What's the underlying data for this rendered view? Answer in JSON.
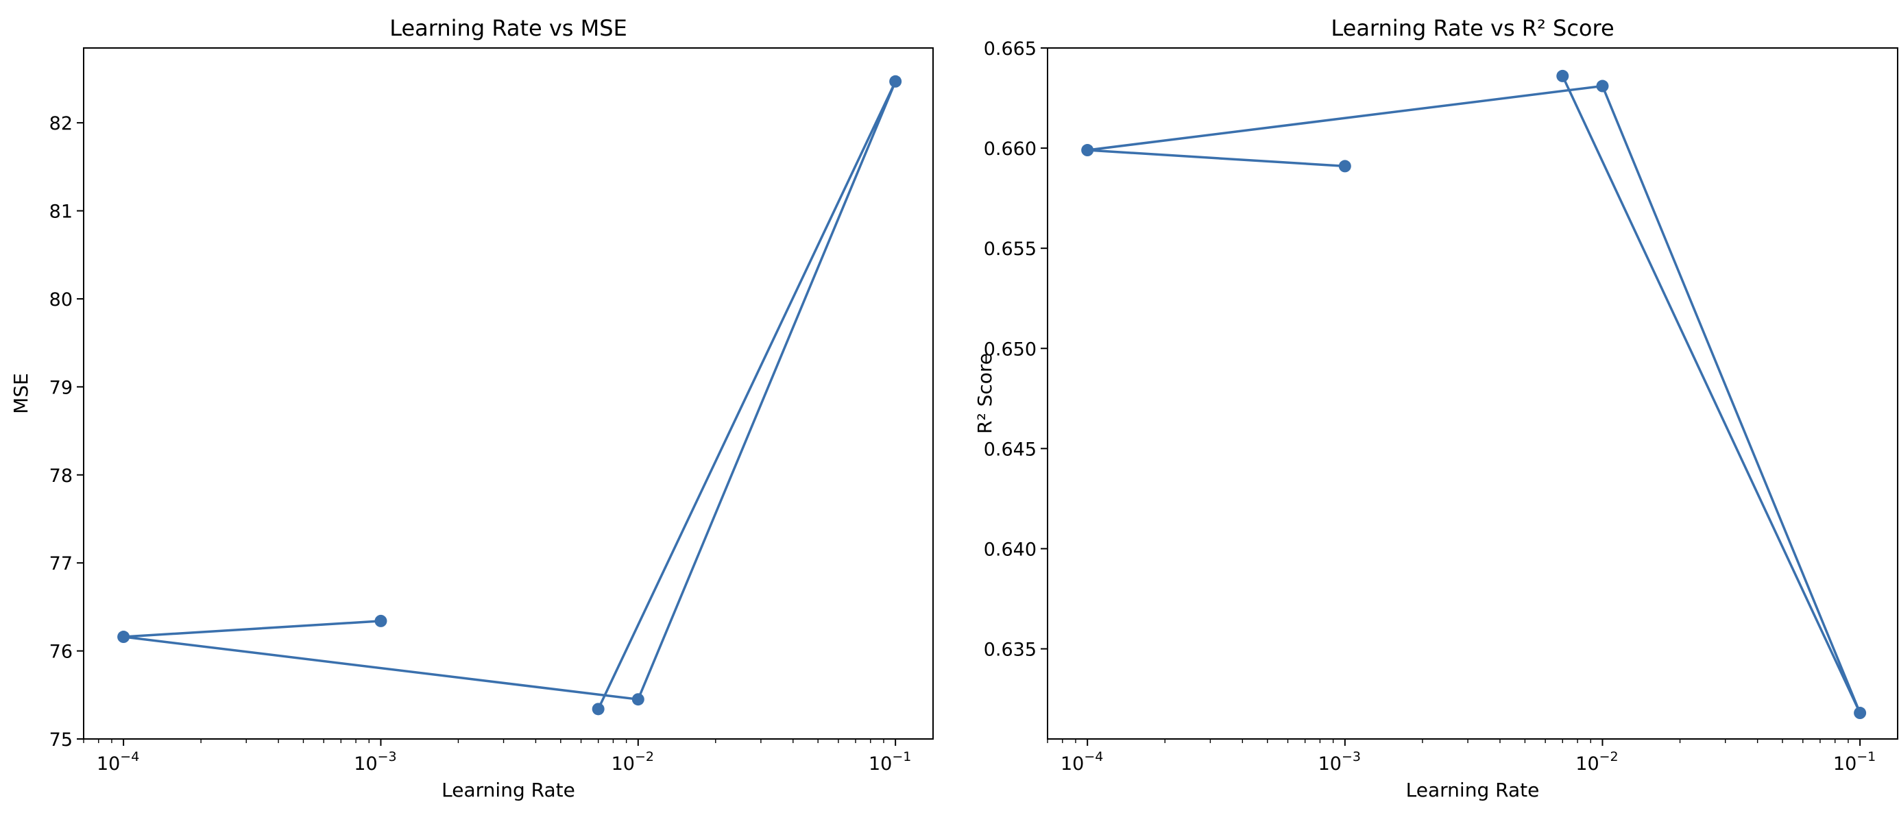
{
  "chart_data": [
    {
      "type": "line",
      "title": "Learning Rate vs MSE",
      "xlabel": "Learning Rate",
      "ylabel": "MSE",
      "xscale": "log",
      "xlim": [
        7e-05,
        0.14
      ],
      "ylim": [
        75.0,
        82.85
      ],
      "xticks": [
        {
          "base": "10",
          "exp": "−4",
          "value": 0.0001
        },
        {
          "base": "10",
          "exp": "−3",
          "value": 0.001
        },
        {
          "base": "10",
          "exp": "−2",
          "value": 0.01
        },
        {
          "base": "10",
          "exp": "−1",
          "value": 0.1
        }
      ],
      "yticks": [
        "75",
        "76",
        "77",
        "78",
        "79",
        "80",
        "81",
        "82"
      ],
      "grid": false,
      "color": "#3a70ad",
      "series": [
        {
          "x": [
            0.001,
            0.0001,
            0.01,
            0.1,
            0.007
          ],
          "y": [
            76.34,
            76.16,
            75.45,
            82.47,
            75.34
          ]
        }
      ]
    },
    {
      "type": "line",
      "title": "Learning Rate vs R² Score",
      "xlabel": "Learning Rate",
      "ylabel": "R² Score",
      "xscale": "log",
      "xlim": [
        7e-05,
        0.14
      ],
      "ylim": [
        0.6305,
        0.665
      ],
      "xticks": [
        {
          "base": "10",
          "exp": "−4",
          "value": 0.0001
        },
        {
          "base": "10",
          "exp": "−3",
          "value": 0.001
        },
        {
          "base": "10",
          "exp": "−2",
          "value": 0.01
        },
        {
          "base": "10",
          "exp": "−1",
          "value": 0.1
        }
      ],
      "yticks": [
        "0.635",
        "0.640",
        "0.645",
        "0.650",
        "0.655",
        "0.660",
        "0.665"
      ],
      "grid": false,
      "color": "#3a70ad",
      "series": [
        {
          "x": [
            0.001,
            0.0001,
            0.01,
            0.1,
            0.007
          ],
          "y": [
            0.6591,
            0.6599,
            0.6631,
            0.6318,
            0.6636
          ]
        }
      ]
    }
  ]
}
